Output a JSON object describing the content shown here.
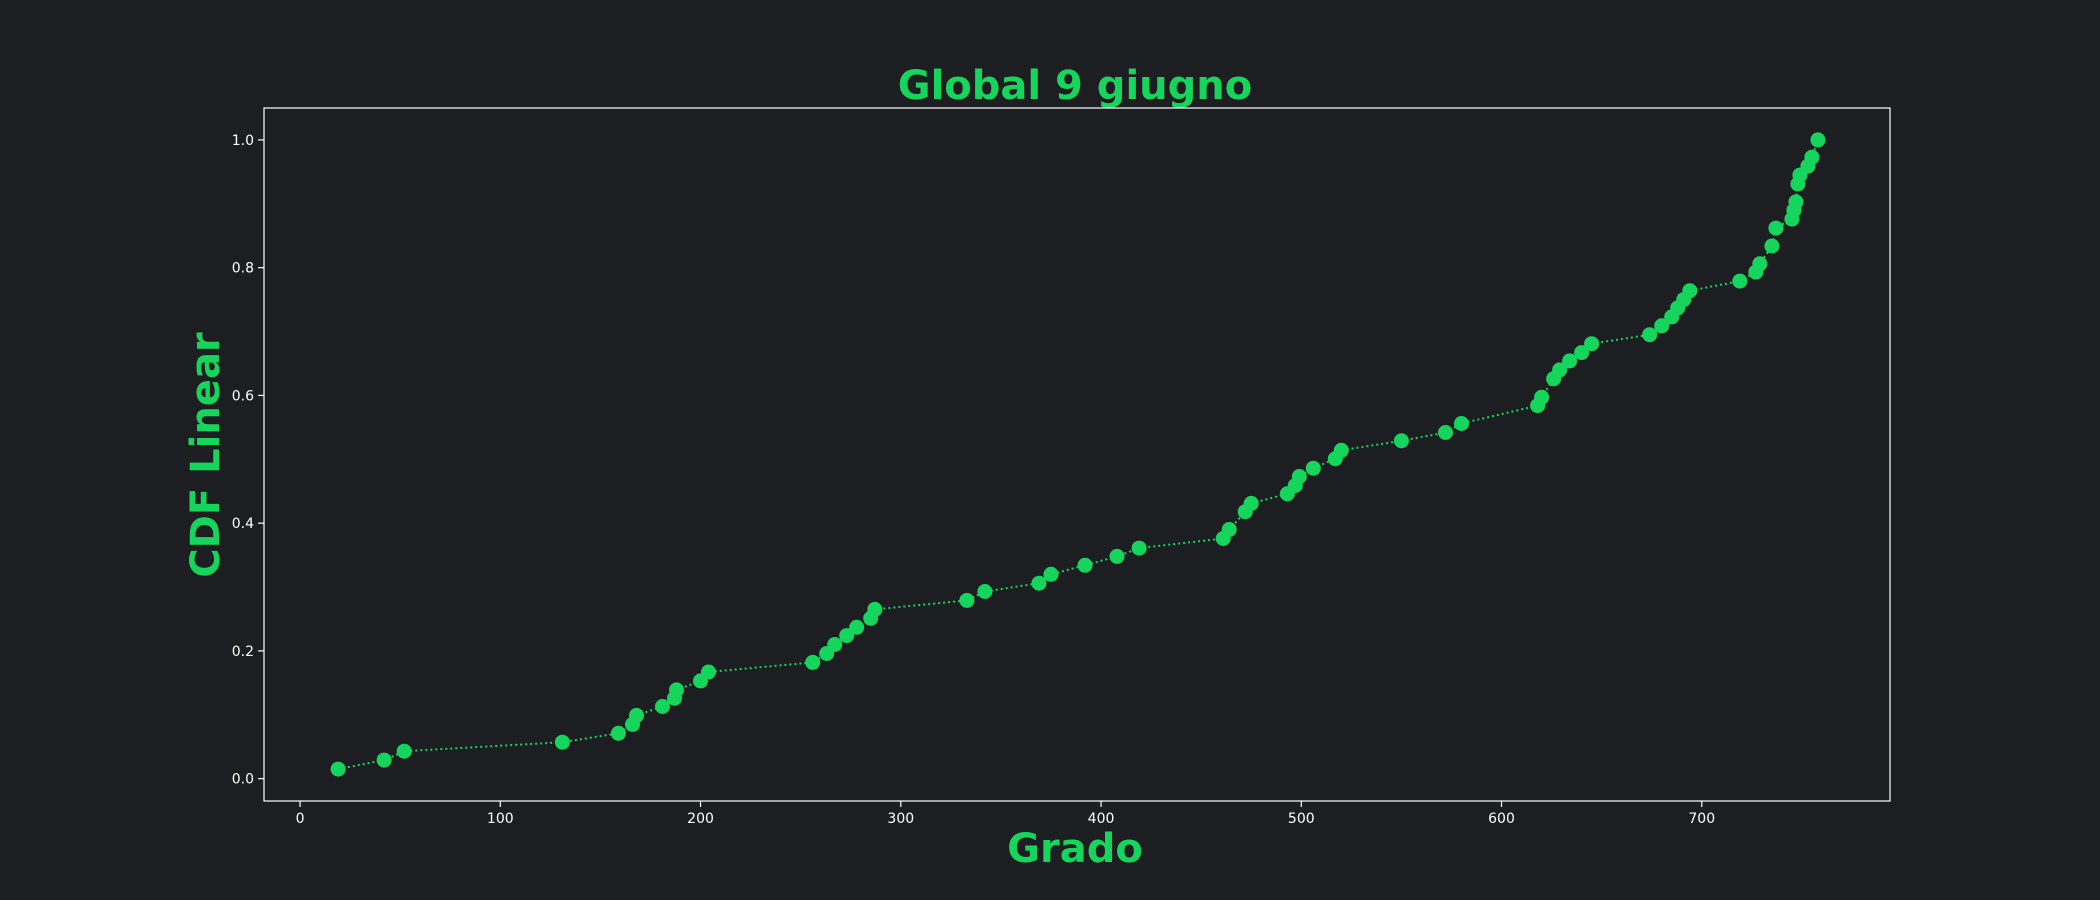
{
  "colors": {
    "background": "#1d1e22",
    "accent": "#16d55d",
    "axes": "#ffffff"
  },
  "chart_data": {
    "type": "line",
    "title": "Global 9 giugno",
    "xlabel": "Grado",
    "ylabel": "CDF Linear",
    "xlim": [
      -18,
      794
    ],
    "ylim": [
      -0.035,
      1.05
    ],
    "xticks": [
      0,
      100,
      200,
      300,
      400,
      500,
      600,
      700
    ],
    "yticks": [
      0.0,
      0.2,
      0.4,
      0.6,
      0.8,
      1.0
    ],
    "xtick_labels": [
      "0",
      "100",
      "200",
      "300",
      "400",
      "500",
      "600",
      "700"
    ],
    "ytick_labels": [
      "0.0",
      "0.2",
      "0.4",
      "0.6",
      "0.8",
      "1.0"
    ],
    "grid": false,
    "line_style": "dotted",
    "marker": "circle",
    "series": [
      {
        "x": [
          19,
          42,
          52,
          131,
          159,
          166,
          168,
          181,
          187,
          188,
          200,
          204,
          256,
          263,
          267,
          273,
          278,
          285,
          287,
          333,
          342,
          369,
          375,
          392,
          408,
          419,
          461,
          464,
          472,
          475,
          493,
          497,
          499,
          506,
          517,
          520,
          550,
          572,
          580,
          618,
          620,
          626,
          629,
          634,
          640,
          645,
          674,
          680,
          685,
          688,
          691,
          694,
          719,
          727,
          729,
          735,
          737,
          745,
          746,
          747,
          748,
          749,
          753,
          755,
          758
        ],
        "y": [
          0.015,
          0.029,
          0.043,
          0.057,
          0.071,
          0.085,
          0.099,
          0.113,
          0.126,
          0.139,
          0.153,
          0.167,
          0.182,
          0.196,
          0.21,
          0.224,
          0.237,
          0.251,
          0.265,
          0.279,
          0.293,
          0.306,
          0.32,
          0.334,
          0.348,
          0.361,
          0.376,
          0.39,
          0.418,
          0.431,
          0.446,
          0.459,
          0.473,
          0.486,
          0.501,
          0.514,
          0.529,
          0.542,
          0.556,
          0.584,
          0.597,
          0.626,
          0.64,
          0.654,
          0.667,
          0.681,
          0.695,
          0.709,
          0.723,
          0.737,
          0.75,
          0.764,
          0.779,
          0.793,
          0.806,
          0.834,
          0.862,
          0.876,
          0.89,
          0.903,
          0.931,
          0.945,
          0.959,
          0.973,
          1.0
        ]
      }
    ]
  }
}
